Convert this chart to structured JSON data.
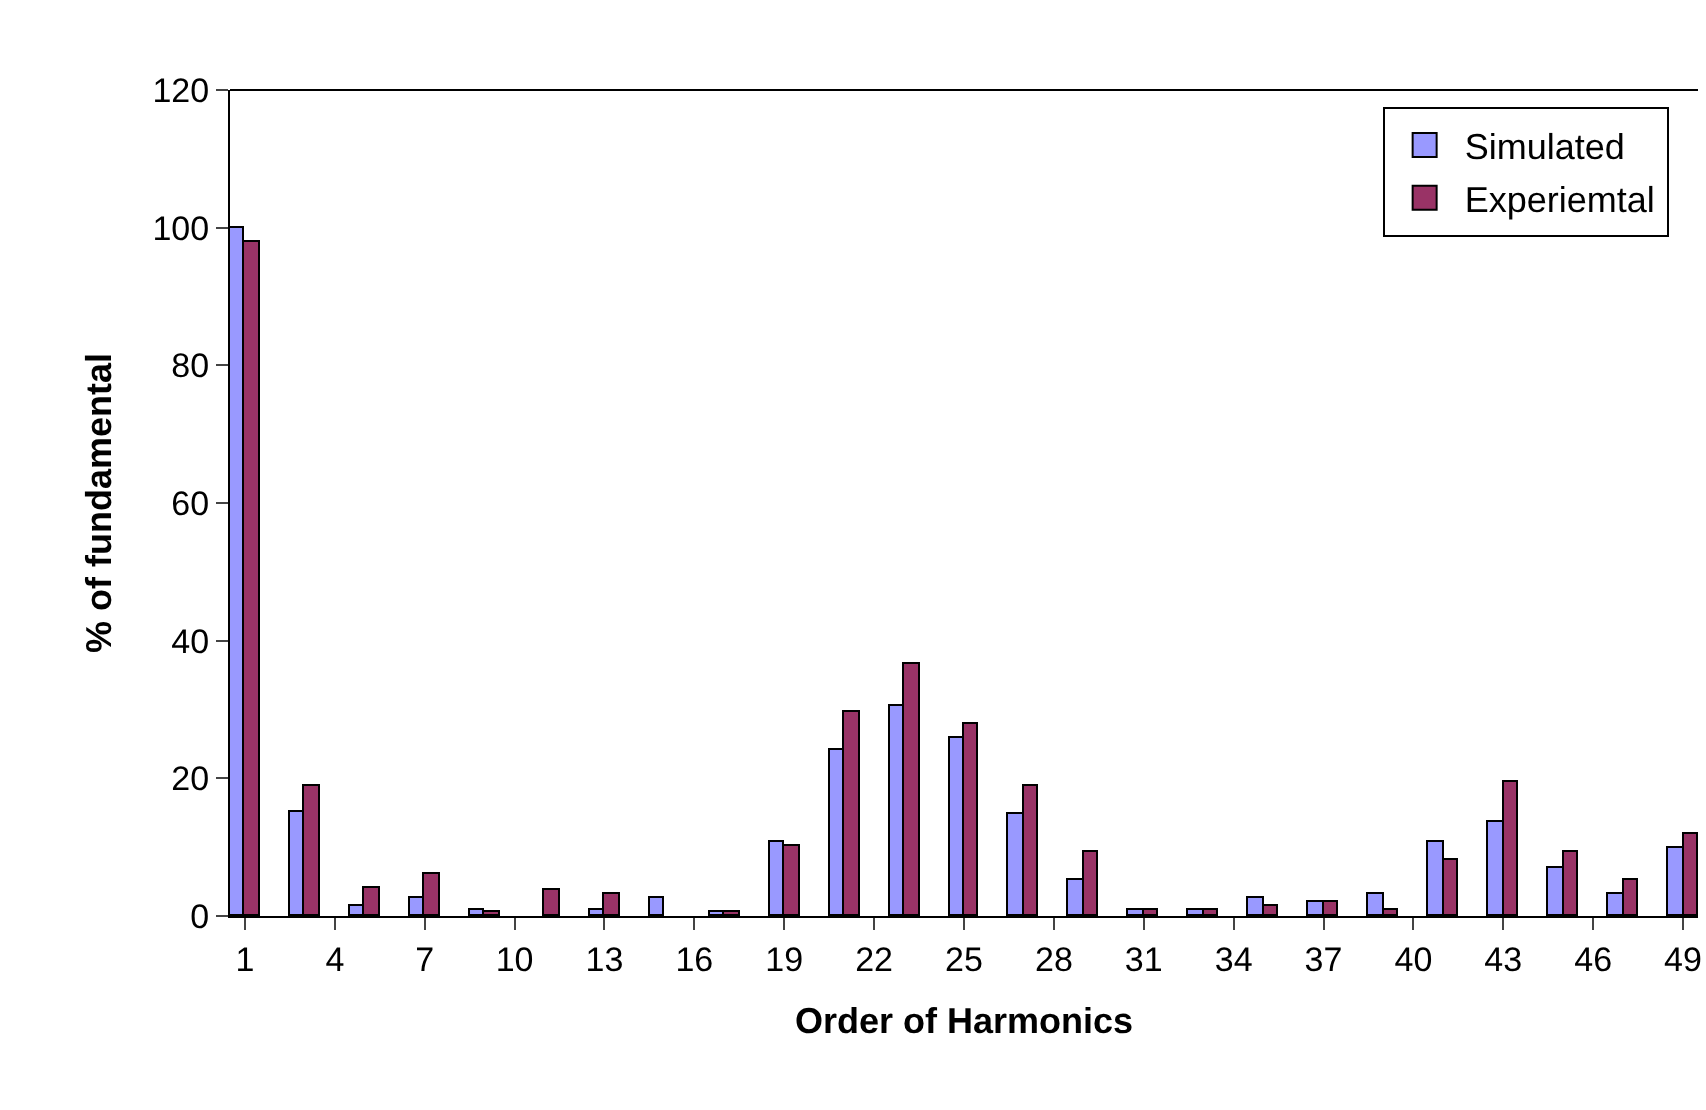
{
  "chart_data": {
    "type": "bar",
    "xlabel": "Order of Harmonics",
    "ylabel": "% of fundamental",
    "categories": [
      "1",
      null,
      null,
      "4",
      null,
      null,
      "7",
      null,
      null,
      "10",
      null,
      null,
      "13",
      null,
      null,
      "16",
      null,
      null,
      "19",
      null,
      null,
      "22",
      null,
      null,
      "25",
      null,
      null,
      "28",
      null,
      null,
      "31",
      null,
      null,
      "34",
      null,
      null,
      "37",
      null,
      null,
      "40",
      null,
      null,
      "43",
      null,
      null,
      "46",
      null,
      null,
      "49"
    ],
    "series": [
      {
        "name": "Simulated",
        "color": "#9999ff",
        "values": [
          100,
          null,
          15,
          null,
          1.5,
          null,
          2.5,
          null,
          1,
          null,
          null,
          null,
          1,
          null,
          2.7,
          null,
          0.5,
          null,
          10.8,
          null,
          24,
          null,
          30.5,
          null,
          26,
          null,
          14.7,
          null,
          5.3,
          null,
          1,
          null,
          1,
          null,
          2.6,
          null,
          2,
          null,
          3.2,
          null,
          10.8,
          null,
          13.6,
          null,
          7,
          null,
          3.2,
          null,
          9.8
        ]
      },
      {
        "name": "Experiemtal",
        "color": "#993366",
        "values": [
          98,
          null,
          19,
          null,
          4.2,
          null,
          6,
          null,
          0.5,
          null,
          3.7,
          null,
          3.2,
          null,
          null,
          null,
          0.5,
          null,
          10.2,
          null,
          29.5,
          null,
          36.5,
          null,
          27.8,
          null,
          19,
          null,
          9.2,
          null,
          1,
          null,
          1,
          null,
          1.5,
          null,
          2,
          null,
          1,
          null,
          8,
          null,
          19.6,
          null,
          9.2,
          null,
          5.3,
          null,
          12
        ]
      }
    ],
    "ylim": [
      0,
      120
    ],
    "yticks": [
      0,
      20,
      40,
      60,
      80,
      100,
      120
    ],
    "legend": "top right"
  }
}
